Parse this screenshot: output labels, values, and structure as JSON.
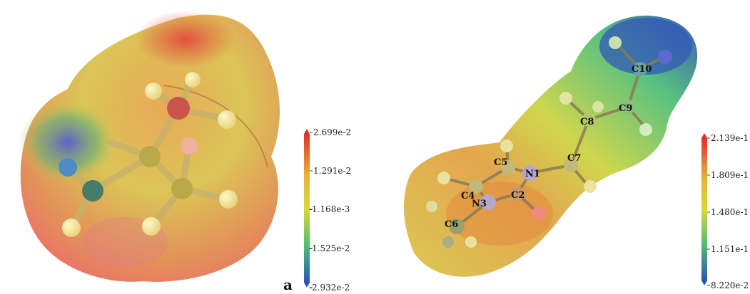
{
  "panel_a": {
    "label": "a",
    "colorbar_ticks": [
      "2.699e-2",
      "1.291e-2",
      "-1.168e-3",
      "-1.525e-2",
      "-2.932e-2"
    ]
  },
  "panel_b": {
    "colorbar_ticks": [
      "2.139e-1",
      "1.809e-1",
      "1.480e-1",
      "1.151e-1",
      "8.220e-2"
    ],
    "atom_labels": [
      "C10",
      "C9",
      "C8",
      "C7",
      "N1",
      "C5",
      "C4",
      "C2",
      "N3",
      "C6"
    ]
  },
  "colors": {
    "scale_high": "#e0302a",
    "scale_mid_high": "#e8b13a",
    "scale_mid": "#d7d93c",
    "scale_mid_low": "#4fbf70",
    "scale_low": "#2a55b8"
  }
}
